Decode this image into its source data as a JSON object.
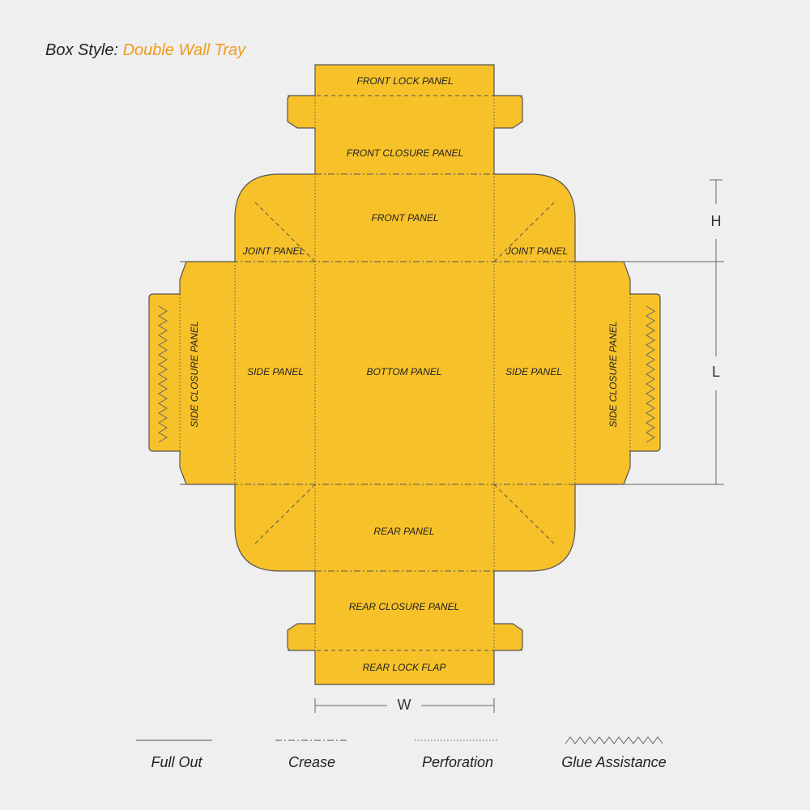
{
  "header": {
    "label": "Box Style:",
    "title": "Double Wall Tray"
  },
  "panels": [
    "FRONT LOCK PANEL",
    "FRONT CLOSURE PANEL",
    "FRONT PANEL",
    "JOINT PANEL",
    "JOINT PANEL",
    "SIDE CLOSURE PANEL",
    "SIDE PANEL",
    "BOTTOM PANEL",
    "SIDE PANEL",
    "SIDE CLOSURE PANEL",
    "REAR PANEL",
    "REAR CLOSURE PANEL",
    "REAR LOCK FLAP"
  ],
  "dimensions": {
    "height": "H",
    "length": "L",
    "width": "W"
  },
  "legend": [
    "Full Out",
    "Crease",
    "Perforation",
    "Glue Assistance"
  ]
}
